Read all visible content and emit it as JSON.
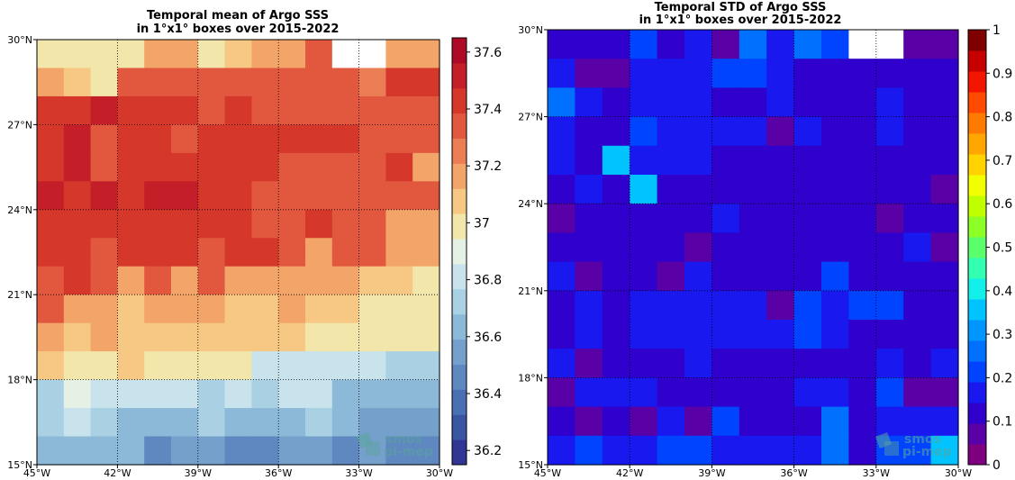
{
  "chart_data": [
    {
      "type": "heatmap",
      "title": [
        "Temporal mean of Argo SSS",
        "in 1°x1° boxes over 2015-2022"
      ],
      "xlabel": "",
      "ylabel": "",
      "xlim": [
        -45,
        -30
      ],
      "ylim": [
        15,
        30
      ],
      "x_ticks": [
        {
          "value": -45,
          "label": "45°W"
        },
        {
          "value": -42,
          "label": "42°W"
        },
        {
          "value": -39,
          "label": "39°W"
        },
        {
          "value": -36,
          "label": "36°W"
        },
        {
          "value": -33,
          "label": "33°W"
        },
        {
          "value": -30,
          "label": "30°W"
        }
      ],
      "y_ticks": [
        {
          "value": 15,
          "label": "15°N"
        },
        {
          "value": 18,
          "label": "18°N"
        },
        {
          "value": 21,
          "label": "21°N"
        },
        {
          "value": 24,
          "label": "24°N"
        },
        {
          "value": 27,
          "label": "27°N"
        },
        {
          "value": 30,
          "label": "30°N"
        }
      ],
      "grid": "dotted",
      "colorbar": {
        "vmin": 36.15,
        "vmax": 37.65,
        "colors": [
          "#313695",
          "#3a55a1",
          "#4b6fb3",
          "#5f87c0",
          "#75a0cc",
          "#8db9d8",
          "#a9d0e3",
          "#c8e3ec",
          "#e6f1e6",
          "#f2e6ab",
          "#f6c883",
          "#f2a469",
          "#eb7e55",
          "#e2583f",
          "#d5372b",
          "#c41f28",
          "#ac0a26"
        ],
        "ticks": [
          36.2,
          36.4,
          36.6,
          36.8,
          37.0,
          37.2,
          37.4,
          37.6
        ],
        "tick_labels": [
          "36.2",
          "36.4",
          "36.6",
          "36.8",
          "37",
          "37.2",
          "37.4",
          "37.6"
        ]
      },
      "lat_rows_top_to_bottom": [
        29.5,
        28.5,
        27.5,
        26.5,
        25.5,
        24.5,
        23.5,
        22.5,
        21.5,
        20.5,
        19.5,
        18.5,
        17.5,
        16.5,
        15.5
      ],
      "lon_cols_left_to_right": [
        -44.5,
        -43.5,
        -42.5,
        -41.5,
        -40.5,
        -39.5,
        -38.5,
        -37.5,
        -36.5,
        -35.5,
        -34.5,
        -33.5,
        -32.5,
        -31.5,
        -30.5
      ],
      "values": [
        [
          37.0,
          37.0,
          37.0,
          37.0,
          37.2,
          37.2,
          37.0,
          37.1,
          37.15,
          37.2,
          37.3,
          null,
          null,
          37.2,
          37.2
        ],
        [
          37.15,
          37.1,
          36.95,
          37.35,
          37.35,
          37.35,
          37.35,
          37.35,
          37.35,
          37.35,
          37.35,
          37.35,
          37.25,
          37.4,
          37.4
        ],
        [
          37.45,
          37.45,
          37.5,
          37.4,
          37.4,
          37.4,
          37.3,
          37.4,
          37.35,
          37.35,
          37.35,
          37.35,
          37.3,
          37.35,
          37.35
        ],
        [
          37.45,
          37.55,
          37.35,
          37.45,
          37.45,
          37.35,
          37.45,
          37.45,
          37.45,
          37.4,
          37.4,
          37.4,
          37.35,
          37.35,
          37.35
        ],
        [
          37.45,
          37.55,
          37.3,
          37.45,
          37.4,
          37.4,
          37.45,
          37.45,
          37.4,
          37.35,
          37.35,
          37.3,
          37.3,
          37.4,
          37.2
        ],
        [
          37.55,
          37.45,
          37.55,
          37.4,
          37.55,
          37.55,
          37.45,
          37.45,
          37.35,
          37.35,
          37.35,
          37.3,
          37.35,
          37.35,
          37.3
        ],
        [
          37.45,
          37.4,
          37.45,
          37.45,
          37.45,
          37.4,
          37.45,
          37.4,
          37.35,
          37.35,
          37.4,
          37.35,
          37.35,
          37.2,
          37.15
        ],
        [
          37.4,
          37.4,
          37.35,
          37.4,
          37.4,
          37.4,
          37.35,
          37.4,
          37.4,
          37.35,
          37.15,
          37.35,
          37.35,
          37.2,
          37.15
        ],
        [
          37.3,
          37.4,
          37.3,
          37.2,
          37.3,
          37.2,
          37.35,
          37.2,
          37.2,
          37.2,
          37.2,
          37.15,
          37.1,
          37.1,
          36.95
        ],
        [
          37.35,
          37.2,
          37.2,
          37.1,
          37.15,
          37.15,
          37.2,
          37.1,
          37.1,
          37.15,
          37.05,
          37.05,
          37.0,
          37.0,
          37.0
        ],
        [
          37.15,
          37.1,
          37.15,
          37.05,
          37.05,
          37.05,
          37.1,
          37.05,
          37.05,
          37.05,
          37.0,
          37.0,
          36.95,
          36.95,
          36.95
        ],
        [
          37.1,
          36.95,
          37.0,
          37.05,
          36.95,
          36.95,
          37.0,
          37.0,
          36.85,
          36.85,
          36.85,
          36.85,
          36.85,
          36.7,
          36.7
        ],
        [
          36.75,
          36.9,
          36.8,
          36.8,
          36.8,
          36.8,
          36.75,
          36.8,
          36.7,
          36.8,
          36.8,
          36.65,
          36.6,
          36.65,
          36.65
        ],
        [
          36.7,
          36.8,
          36.75,
          36.65,
          36.65,
          36.65,
          36.7,
          36.65,
          36.65,
          36.65,
          36.7,
          36.6,
          36.55,
          36.55,
          36.55
        ],
        [
          36.6,
          36.6,
          36.6,
          36.6,
          36.5,
          36.55,
          36.55,
          36.5,
          36.5,
          36.55,
          36.55,
          36.5,
          36.55,
          36.5,
          36.45
        ]
      ]
    },
    {
      "type": "heatmap",
      "title": [
        "Temporal STD of Argo SSS",
        "in 1°x1° boxes over 2015-2022"
      ],
      "xlabel": "",
      "ylabel": "",
      "xlim": [
        -45,
        -30
      ],
      "ylim": [
        15,
        30
      ],
      "x_ticks": [
        {
          "value": -45,
          "label": "45°W"
        },
        {
          "value": -42,
          "label": "42°W"
        },
        {
          "value": -39,
          "label": "39°W"
        },
        {
          "value": -36,
          "label": "36°W"
        },
        {
          "value": -33,
          "label": "33°W"
        },
        {
          "value": -30,
          "label": "30°W"
        }
      ],
      "y_ticks": [
        {
          "value": 15,
          "label": "15°N"
        },
        {
          "value": 18,
          "label": "18°N"
        },
        {
          "value": 21,
          "label": "21°N"
        },
        {
          "value": 24,
          "label": "24°N"
        },
        {
          "value": 27,
          "label": "27°N"
        },
        {
          "value": 30,
          "label": "30°N"
        }
      ],
      "grid": "dotted",
      "colorbar": {
        "vmin": 0,
        "vmax": 1,
        "colors": [
          "#7f007f",
          "#5900a6",
          "#3000cc",
          "#1818ef",
          "#0044ff",
          "#0070ff",
          "#0096ff",
          "#00c3ff",
          "#13f0ea",
          "#32ffb1",
          "#5aff6b",
          "#8cff26",
          "#c0ff00",
          "#f2ff00",
          "#ffd200",
          "#ffa600",
          "#ff7a00",
          "#ff4a00",
          "#f21600",
          "#c60000",
          "#7f0000"
        ],
        "ticks": [
          0,
          0.1,
          0.2,
          0.3,
          0.4,
          0.5,
          0.6,
          0.7,
          0.8,
          0.9,
          1
        ],
        "tick_labels": [
          "0",
          "0.1",
          "0.2",
          "0.3",
          "0.4",
          "0.5",
          "0.6",
          "0.7",
          "0.8",
          "0.9",
          "1"
        ]
      },
      "lat_rows_top_to_bottom": [
        29.5,
        28.5,
        27.5,
        26.5,
        25.5,
        24.5,
        23.5,
        22.5,
        21.5,
        20.5,
        19.5,
        18.5,
        17.5,
        16.5,
        15.5
      ],
      "lon_cols_left_to_right": [
        -44.5,
        -43.5,
        -42.5,
        -41.5,
        -40.5,
        -39.5,
        -38.5,
        -37.5,
        -36.5,
        -35.5,
        -34.5,
        -33.5,
        -32.5,
        -31.5,
        -30.5
      ],
      "values": [
        [
          0.12,
          0.12,
          0.12,
          0.22,
          0.12,
          0.15,
          0.05,
          0.28,
          0.18,
          0.28,
          0.2,
          null,
          null,
          0.05,
          0.05
        ],
        [
          0.18,
          0.08,
          0.08,
          0.15,
          0.15,
          0.15,
          0.2,
          0.2,
          0.15,
          0.12,
          0.12,
          0.12,
          0.1,
          0.1,
          0.12
        ],
        [
          0.28,
          0.16,
          0.12,
          0.16,
          0.16,
          0.16,
          0.14,
          0.12,
          0.15,
          0.12,
          0.14,
          0.12,
          0.15,
          0.1,
          0.12
        ],
        [
          0.16,
          0.12,
          0.12,
          0.2,
          0.16,
          0.16,
          0.16,
          0.16,
          0.08,
          0.16,
          0.1,
          0.12,
          0.16,
          0.14,
          0.14
        ],
        [
          0.16,
          0.12,
          0.35,
          0.16,
          0.16,
          0.16,
          0.12,
          0.14,
          0.1,
          0.12,
          0.1,
          0.1,
          0.12,
          0.12,
          0.1
        ],
        [
          0.12,
          0.16,
          0.1,
          0.38,
          0.12,
          0.12,
          0.12,
          0.12,
          0.12,
          0.1,
          0.1,
          0.1,
          0.12,
          0.12,
          0.06
        ],
        [
          0.08,
          0.12,
          0.1,
          0.1,
          0.12,
          0.12,
          0.16,
          0.1,
          0.12,
          0.1,
          0.1,
          0.1,
          0.08,
          0.12,
          0.12
        ],
        [
          0.12,
          0.12,
          0.1,
          0.1,
          0.12,
          0.08,
          0.12,
          0.1,
          0.12,
          0.12,
          0.12,
          0.12,
          0.1,
          0.16,
          0.08
        ],
        [
          0.16,
          0.06,
          0.12,
          0.1,
          0.06,
          0.16,
          0.1,
          0.1,
          0.12,
          0.12,
          0.2,
          0.12,
          0.12,
          0.12,
          0.12
        ],
        [
          0.12,
          0.16,
          0.12,
          0.16,
          0.16,
          0.16,
          0.16,
          0.16,
          0.08,
          0.2,
          0.16,
          0.2,
          0.2,
          0.12,
          0.1
        ],
        [
          0.12,
          0.16,
          0.12,
          0.16,
          0.16,
          0.16,
          0.16,
          0.16,
          0.16,
          0.2,
          0.16,
          0.12,
          0.1,
          0.12,
          0.12
        ],
        [
          0.16,
          0.06,
          0.1,
          0.1,
          0.1,
          0.16,
          0.1,
          0.1,
          0.12,
          0.12,
          0.12,
          0.12,
          0.16,
          0.12,
          0.16
        ],
        [
          0.06,
          0.16,
          0.16,
          0.16,
          0.12,
          0.12,
          0.1,
          0.12,
          0.12,
          0.16,
          0.16,
          0.12,
          0.2,
          0.08,
          0.08
        ],
        [
          0.12,
          0.06,
          0.1,
          0.06,
          0.16,
          0.06,
          0.2,
          0.12,
          0.12,
          0.1,
          0.25,
          0.12,
          0.16,
          0.16,
          0.16
        ],
        [
          0.16,
          0.2,
          0.16,
          0.16,
          0.2,
          0.2,
          0.16,
          0.16,
          0.16,
          0.16,
          0.25,
          0.12,
          0.2,
          0.2,
          0.35
        ]
      ]
    }
  ],
  "watermark": {
    "line1": "smos",
    "line2": "pi-mep",
    "color": "#5aa59c"
  }
}
